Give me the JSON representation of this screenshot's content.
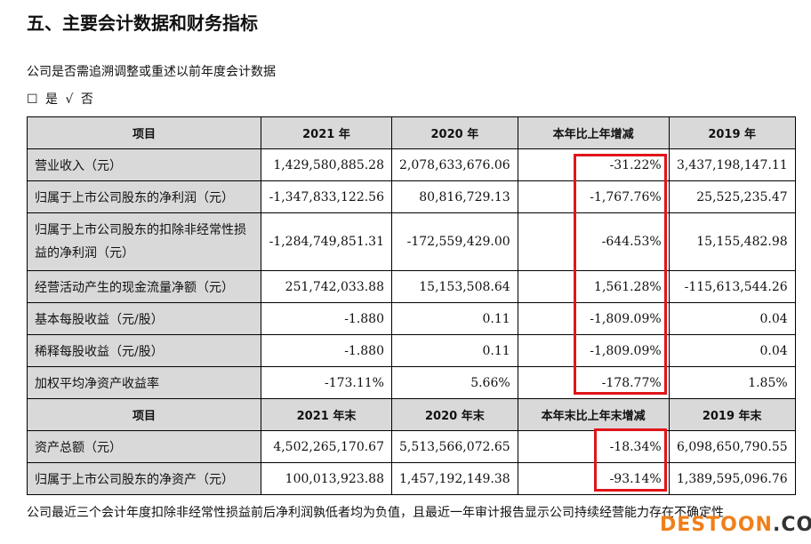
{
  "title": "五、主要会计数据和财务指标",
  "question": "公司是否需追溯调整或重述以前年度会计数据",
  "options": {
    "yes_box": "☐",
    "yes": "是",
    "no_check": "√",
    "no": "否"
  },
  "table1": {
    "headers": [
      "项目",
      "2021 年",
      "2020 年",
      "本年比上年增减",
      "2019 年"
    ],
    "rows": [
      [
        "营业收入（元）",
        "1,429,580,885.28",
        "2,078,633,676.06",
        "-31.22%",
        "3,437,198,147.11"
      ],
      [
        "归属于上市公司股东的净利润（元）",
        "-1,347,833,122.56",
        "80,816,729.13",
        "-1,767.76%",
        "25,525,235.47"
      ],
      [
        "归属于上市公司股东的扣除非经常性损益的净利润（元）",
        "-1,284,749,851.31",
        "-172,559,429.00",
        "-644.53%",
        "15,155,482.98"
      ],
      [
        "经营活动产生的现金流量净额（元）",
        "251,742,033.88",
        "15,153,508.64",
        "1,561.28%",
        "-115,613,544.26"
      ],
      [
        "基本每股收益（元/股）",
        "-1.880",
        "0.11",
        "-1,809.09%",
        "0.04"
      ],
      [
        "稀释每股收益（元/股）",
        "-1.880",
        "0.11",
        "-1,809.09%",
        "0.04"
      ],
      [
        "加权平均净资产收益率",
        "-173.11%",
        "5.66%",
        "-178.77%",
        "1.85%"
      ]
    ]
  },
  "table2": {
    "headers": [
      "项目",
      "2021 年末",
      "2020 年末",
      "本年末比上年末增减",
      "2019 年末"
    ],
    "rows": [
      [
        "资产总额（元）",
        "4,502,265,170.67",
        "5,513,566,072.65",
        "-18.34%",
        "6,098,650,790.55"
      ],
      [
        "归属于上市公司股东的净资产（元）",
        "100,013,923.88",
        "1,457,192,149.38",
        "-93.14%",
        "1,389,595,096.76"
      ]
    ]
  },
  "footnote": "公司最近三个会计年度扣除非经常性损益前后净利润孰低者均为负值，且最近一年审计报告显示公司持续经营能力存在不确定性",
  "watermark": {
    "part1": "DESTOON",
    "part2": ".COM"
  },
  "colors": {
    "highlight": "#e0141a",
    "header_bg": "#d9d9d9"
  }
}
